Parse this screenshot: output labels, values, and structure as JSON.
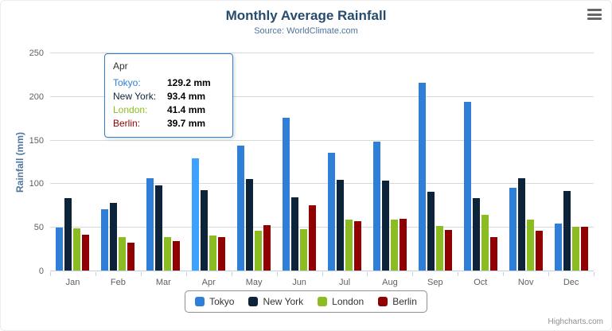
{
  "chart": {
    "title": "Monthly Average Rainfall",
    "subtitle": "Source: WorldClimate.com",
    "credits": "Highcharts.com"
  },
  "chart_data": {
    "type": "bar",
    "title": "Monthly Average Rainfall",
    "subtitle": "Source: WorldClimate.com",
    "categories": [
      "Jan",
      "Feb",
      "Mar",
      "Apr",
      "May",
      "Jun",
      "Jul",
      "Aug",
      "Sep",
      "Oct",
      "Nov",
      "Dec"
    ],
    "series": [
      {
        "name": "Tokyo",
        "color": "#2f7ed8",
        "values": [
          49.9,
          71.5,
          106.4,
          129.2,
          144.0,
          176.0,
          135.6,
          148.5,
          216.4,
          194.1,
          95.6,
          54.4
        ]
      },
      {
        "name": "New York",
        "color": "#0d233a",
        "values": [
          83.6,
          78.8,
          98.5,
          93.4,
          106.0,
          84.5,
          105.0,
          104.3,
          91.2,
          83.5,
          106.6,
          92.3
        ]
      },
      {
        "name": "London",
        "color": "#8bbc21",
        "values": [
          48.9,
          38.8,
          39.3,
          41.4,
          47.0,
          48.3,
          59.0,
          59.6,
          52.4,
          65.2,
          59.3,
          51.2
        ]
      },
      {
        "name": "Berlin",
        "color": "#910000",
        "values": [
          42.4,
          33.2,
          34.5,
          39.7,
          52.6,
          75.5,
          57.4,
          60.4,
          47.6,
          39.1,
          46.8,
          51.1
        ]
      }
    ],
    "xlabel": "",
    "ylabel": "Rainfall (mm)",
    "ylim": [
      0,
      250
    ],
    "yticks": [
      0,
      50,
      100,
      150,
      200,
      250
    ],
    "grid": true,
    "legend_position": "bottom",
    "hover_point": {
      "series": "Tokyo",
      "category": "Apr"
    }
  },
  "tooltip": {
    "header": "Apr",
    "border_color": "#2f7ed8",
    "rows": [
      {
        "name": "Tokyo:",
        "value": "129.2 mm",
        "color": "#2f7ed8"
      },
      {
        "name": "New York:",
        "value": "93.4 mm",
        "color": "#0d233a"
      },
      {
        "name": "London:",
        "value": "41.4 mm",
        "color": "#8bbc21"
      },
      {
        "name": "Berlin:",
        "value": "39.7 mm",
        "color": "#910000"
      }
    ]
  }
}
